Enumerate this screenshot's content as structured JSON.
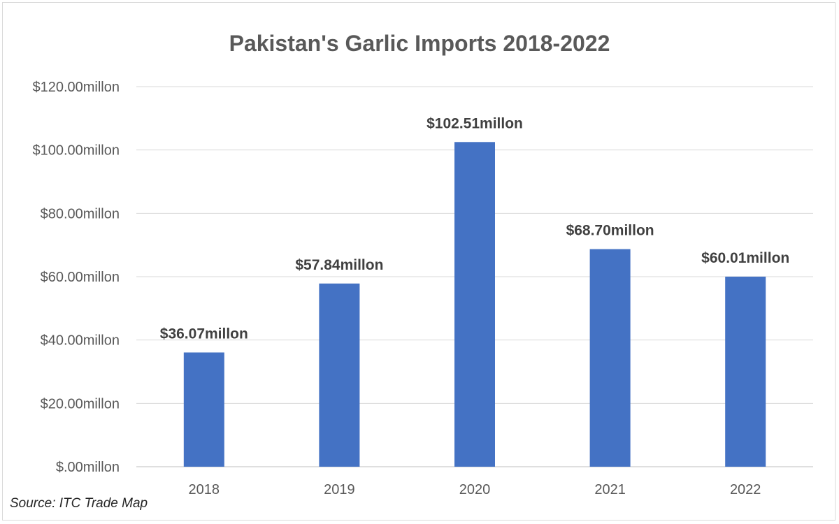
{
  "chart_data": {
    "type": "bar",
    "title": "Pakistan's Garlic Imports 2018-2022",
    "categories": [
      "2018",
      "2019",
      "2020",
      "2021",
      "2022"
    ],
    "values": [
      36.07,
      57.84,
      102.51,
      68.7,
      60.01
    ],
    "data_labels": [
      "$36.07millon",
      "$57.84millon",
      "$102.51millon",
      "$68.70millon",
      "$60.01millon"
    ],
    "y_ticks": [
      0,
      20,
      40,
      60,
      80,
      100,
      120
    ],
    "y_tick_labels": [
      "$.00millon",
      "$20.00millon",
      "$40.00millon",
      "$60.00millon",
      "$80.00millon",
      "$100.00millon",
      "$120.00millon"
    ],
    "ylim": [
      0,
      120
    ],
    "grid": true,
    "legend": "none",
    "bar_color": "#4472c4",
    "source": "Source: ITC Trade Map"
  }
}
